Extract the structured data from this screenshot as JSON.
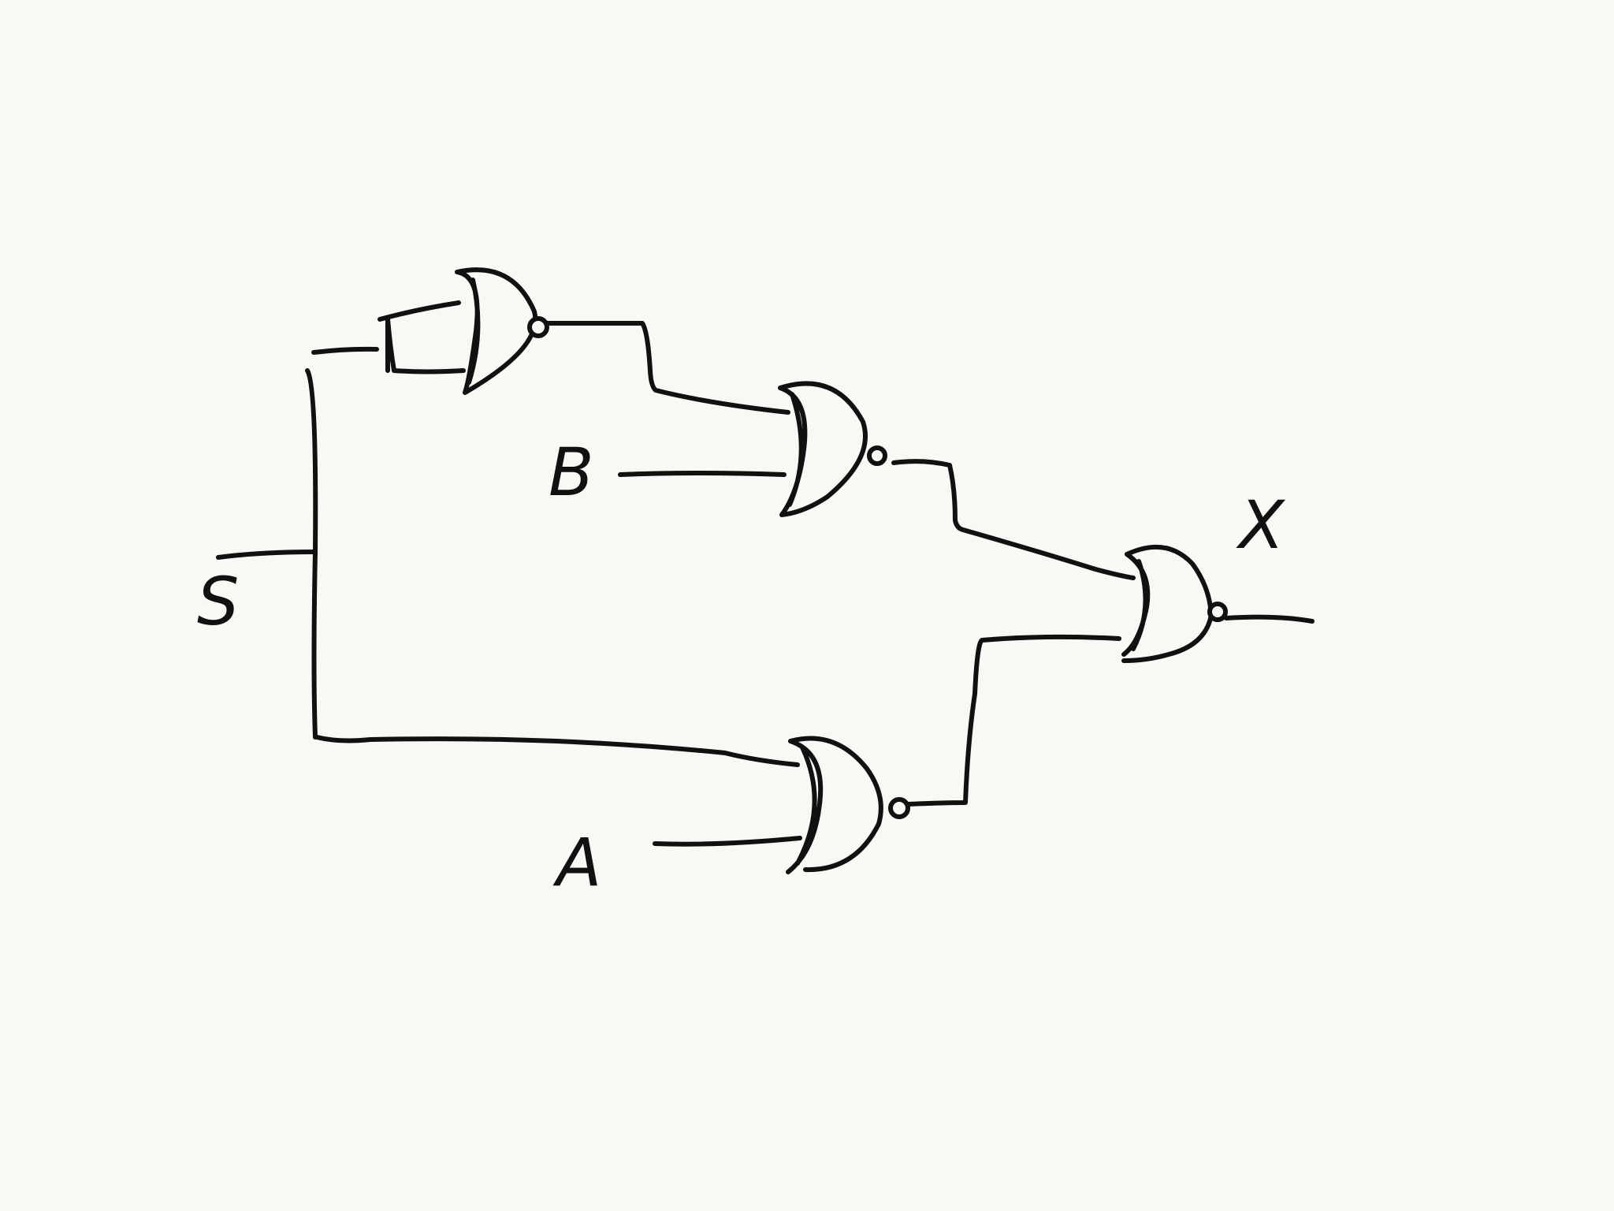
{
  "diagram": {
    "type": "logic-circuit",
    "gate_type": "NOR",
    "ink_color": "#111111",
    "background_color": "#f8f9f4",
    "labels": {
      "input_s": "S",
      "input_b": "B",
      "input_a": "A",
      "output_x": "X"
    },
    "gates": [
      {
        "id": "gate-1",
        "type": "NOR",
        "inputs": [
          "S",
          "S"
        ]
      },
      {
        "id": "gate-2",
        "type": "NOR",
        "inputs": [
          "gate-1",
          "B"
        ]
      },
      {
        "id": "gate-3",
        "type": "NOR",
        "inputs": [
          "S",
          "A"
        ]
      },
      {
        "id": "gate-4",
        "type": "NOR",
        "inputs": [
          "gate-2",
          "gate-3"
        ],
        "output": "X"
      }
    ]
  }
}
